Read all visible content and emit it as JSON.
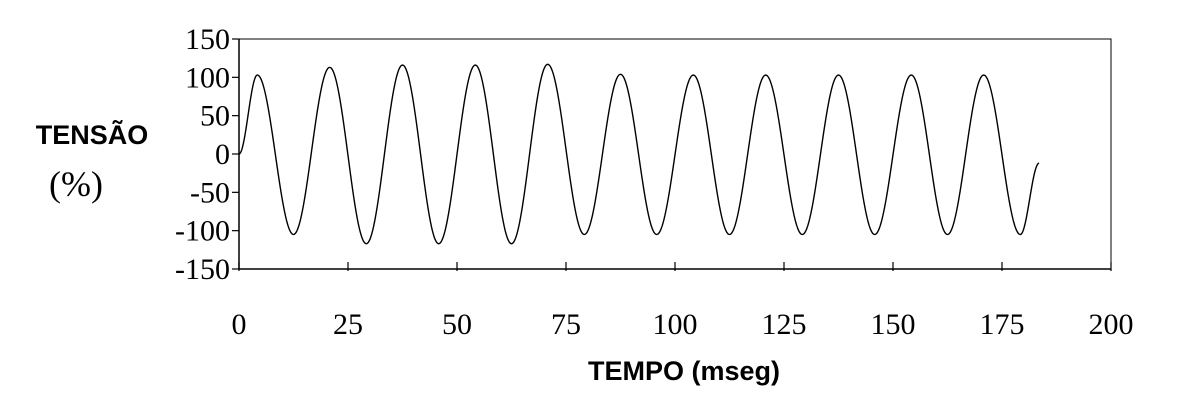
{
  "chart_data": {
    "type": "line",
    "title": "",
    "xlabel": "TEMPO (mseg)",
    "ylabel": "TENSÃO",
    "ylabel_unit": "(%)",
    "xlim": [
      0,
      200
    ],
    "ylim": [
      -150,
      150
    ],
    "x_ticks": [
      0,
      25,
      50,
      75,
      100,
      125,
      150,
      175,
      200
    ],
    "y_ticks": [
      150,
      100,
      50,
      0,
      -50,
      -100,
      -150
    ],
    "grid": false,
    "legend": "none",
    "line_color": "#000000",
    "series": [
      {
        "x": [
          0,
          4.2,
          12.5,
          20.8,
          29.2,
          37.5,
          45.8,
          54.2,
          62.5,
          70.8,
          79.2,
          87.5,
          95.8,
          104.2,
          112.5,
          120.8,
          129.2,
          137.5,
          145.8,
          154.2,
          162.5,
          170.8,
          179.2,
          183.5
        ],
        "y": [
          0,
          103,
          -105,
          113,
          -117,
          116,
          -117,
          116,
          -117,
          117,
          -105,
          104,
          -105,
          103,
          -105,
          103,
          -105,
          103,
          -105,
          103,
          -105,
          103,
          -105,
          -12
        ]
      }
    ]
  }
}
